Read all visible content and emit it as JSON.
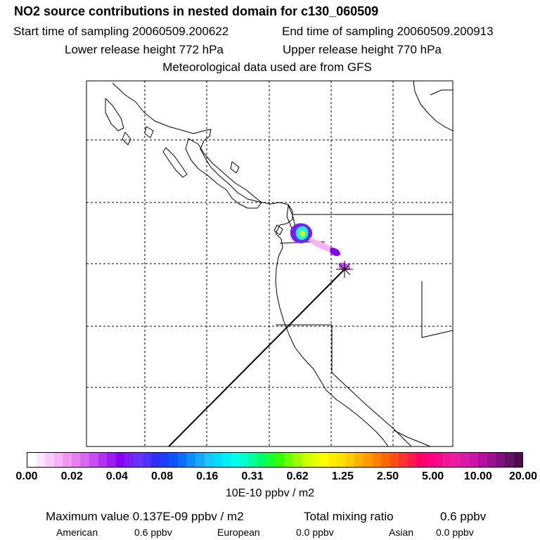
{
  "title": "NO2 source contributions in nested domain for c130_060509",
  "header": {
    "start": "Start time of sampling 20060509.200622",
    "end": "End time of sampling 20060509.200913",
    "lower": "Lower release height  772 hPa",
    "upper": "Upper release height  770 hPa",
    "met": "Meteorological data used are from GFS"
  },
  "legend": {
    "colors": [
      "#ffffff",
      "#fde6fd",
      "#f9ccf9",
      "#f5b3f5",
      "#ee99ee",
      "#e680ef",
      "#d966f0",
      "#c84df0",
      "#b333f2",
      "#9d1af5",
      "#8400f7",
      "#7a1ef5",
      "#6633ff",
      "#4d33ff",
      "#2e2efa",
      "#1f3dff",
      "#0f52ff",
      "#0a6eff",
      "#0f8cff",
      "#14a8ff",
      "#1ac6ff",
      "#00dcff",
      "#00f0f5",
      "#00ffe8",
      "#00ffcc",
      "#00ff99",
      "#00ff66",
      "#1aff33",
      "#33ff00",
      "#66ff00",
      "#99ff00",
      "#ccff00",
      "#e6ff00",
      "#ffff00",
      "#fff000",
      "#ffe000",
      "#ffcc00",
      "#ffb300",
      "#ff9900",
      "#ff8000",
      "#ff6600",
      "#ff4d1a",
      "#ff3333",
      "#ff1a4d",
      "#ff0066",
      "#ff0080",
      "#f70a8c",
      "#ee1a99",
      "#e61fa3",
      "#d91aa8",
      "#cc14a8",
      "#b30fa0",
      "#991090",
      "#801080",
      "#661066",
      "#4d0d4d"
    ],
    "ticks": [
      "0.00",
      "0.02",
      "0.04",
      "0.08",
      "0.16",
      "0.31",
      "0.62",
      "1.25",
      "2.50",
      "5.00",
      "10.00",
      "20.00"
    ],
    "units": "10E-10 ppbv / m2"
  },
  "stats": {
    "max": "Maximum value  0.137E-09 ppbv / m2",
    "total_label": "Total mixing ratio",
    "total_value": "0.6 ppbv"
  },
  "sources": [
    {
      "label": "American",
      "value": "0.6 ppbv"
    },
    {
      "label": "European",
      "value": "0.0 ppbv"
    },
    {
      "label": "Asian",
      "value": "0.0 ppbv"
    }
  ]
}
